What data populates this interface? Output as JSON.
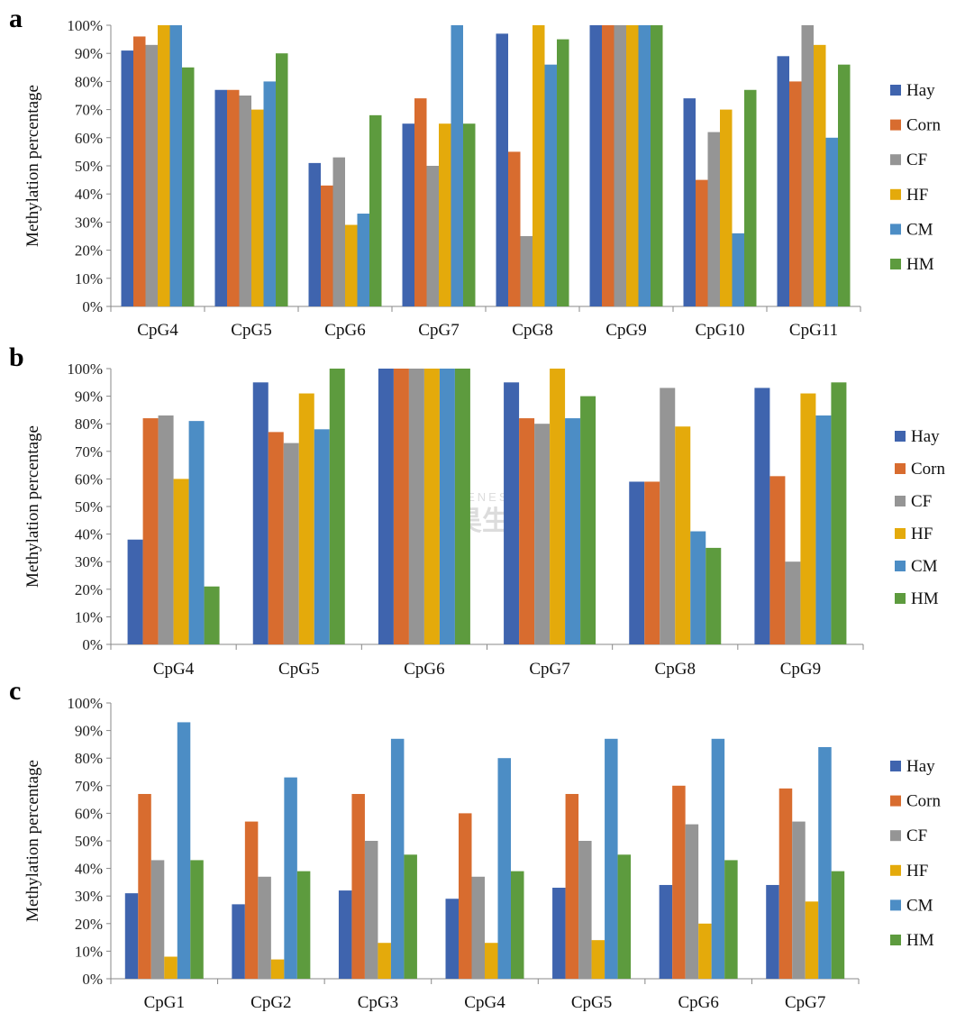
{
  "watermark": {
    "brand": "GENESKY",
    "text": "天昊生物"
  },
  "chart_data": [
    {
      "type": "bar",
      "panel_label": "a",
      "ylabel": "Methylation percentage",
      "ylim": [
        0,
        100
      ],
      "yticks": [
        "0%",
        "10%",
        "20%",
        "30%",
        "40%",
        "50%",
        "60%",
        "70%",
        "80%",
        "90%",
        "100%"
      ],
      "categories": [
        "CpG4",
        "CpG5",
        "CpG6",
        "CpG7",
        "CpG8",
        "CpG9",
        "CpG10",
        "CpG11"
      ],
      "legend_position": "right",
      "series": [
        {
          "name": "Hay",
          "color": "#3f64ae",
          "values": [
            91,
            77,
            51,
            65,
            97,
            100,
            74,
            89
          ]
        },
        {
          "name": "Corn",
          "color": "#d86c2f",
          "values": [
            96,
            77,
            43,
            74,
            55,
            100,
            45,
            80
          ]
        },
        {
          "name": "CF",
          "color": "#959595",
          "values": [
            93,
            75,
            53,
            50,
            25,
            100,
            62,
            100
          ]
        },
        {
          "name": "HF",
          "color": "#e4aa0b",
          "values": [
            100,
            70,
            29,
            65,
            100,
            100,
            70,
            93
          ]
        },
        {
          "name": "CM",
          "color": "#4c8dc5",
          "values": [
            100,
            80,
            33,
            100,
            86,
            100,
            26,
            60
          ]
        },
        {
          "name": "HM",
          "color": "#5d9b3e",
          "values": [
            85,
            90,
            68,
            65,
            95,
            100,
            77,
            86
          ]
        }
      ]
    },
    {
      "type": "bar",
      "panel_label": "b",
      "ylabel": "Methylation percentage",
      "ylim": [
        0,
        100
      ],
      "yticks": [
        "0%",
        "10%",
        "20%",
        "30%",
        "40%",
        "50%",
        "60%",
        "70%",
        "80%",
        "90%",
        "100%"
      ],
      "categories": [
        "CpG4",
        "CpG5",
        "CpG6",
        "CpG7",
        "CpG8",
        "CpG9"
      ],
      "legend_position": "right",
      "series": [
        {
          "name": "Hay",
          "color": "#3f64ae",
          "values": [
            38,
            95,
            100,
            95,
            59,
            93
          ]
        },
        {
          "name": "Corn",
          "color": "#d86c2f",
          "values": [
            82,
            77,
            100,
            82,
            59,
            61
          ]
        },
        {
          "name": "CF",
          "color": "#959595",
          "values": [
            83,
            73,
            100,
            80,
            93,
            30
          ]
        },
        {
          "name": "HF",
          "color": "#e4aa0b",
          "values": [
            60,
            91,
            100,
            100,
            79,
            91
          ]
        },
        {
          "name": "CM",
          "color": "#4c8dc5",
          "values": [
            81,
            78,
            100,
            82,
            41,
            83
          ]
        },
        {
          "name": "HM",
          "color": "#5d9b3e",
          "values": [
            21,
            100,
            100,
            90,
            35,
            95
          ]
        }
      ]
    },
    {
      "type": "bar",
      "panel_label": "c",
      "ylabel": "Methylation percentage",
      "ylim": [
        0,
        100
      ],
      "yticks": [
        "0%",
        "10%",
        "20%",
        "30%",
        "40%",
        "50%",
        "60%",
        "70%",
        "80%",
        "90%",
        "100%"
      ],
      "categories": [
        "CpG1",
        "CpG2",
        "CpG3",
        "CpG4",
        "CpG5",
        "CpG6",
        "CpG7"
      ],
      "legend_position": "right",
      "series": [
        {
          "name": "Hay",
          "color": "#3f64ae",
          "values": [
            31,
            27,
            32,
            29,
            33,
            34,
            34
          ]
        },
        {
          "name": "Corn",
          "color": "#d86c2f",
          "values": [
            67,
            57,
            67,
            60,
            67,
            70,
            69
          ]
        },
        {
          "name": "CF",
          "color": "#959595",
          "values": [
            43,
            37,
            50,
            37,
            50,
            56,
            57
          ]
        },
        {
          "name": "HF",
          "color": "#e4aa0b",
          "values": [
            8,
            7,
            13,
            13,
            14,
            20,
            28
          ]
        },
        {
          "name": "CM",
          "color": "#4c8dc5",
          "values": [
            93,
            73,
            87,
            80,
            87,
            87,
            84
          ]
        },
        {
          "name": "HM",
          "color": "#5d9b3e",
          "values": [
            43,
            39,
            45,
            39,
            45,
            43,
            39
          ]
        }
      ]
    }
  ]
}
